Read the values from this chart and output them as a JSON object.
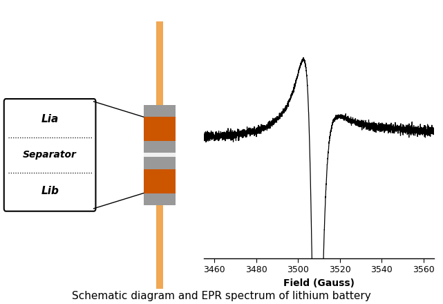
{
  "background_color": "#ffffff",
  "caption": "Schematic diagram and EPR spectrum of lithium battery",
  "caption_fontsize": 11,
  "orange_bar_color": "#CC5500",
  "gray_slab_color": "#999999",
  "light_gray_color": "#C8C8C8",
  "separator_white_color": "#E8E8E8",
  "rod_color": "#F0A855",
  "epr_xlabel": "Field (Gauss)",
  "epr_xticks": [
    3460,
    3480,
    3500,
    3520,
    3540,
    3560
  ],
  "epr_xlim": [
    3455,
    3565
  ],
  "epr_ylim": [
    -1.5,
    1.1
  ]
}
